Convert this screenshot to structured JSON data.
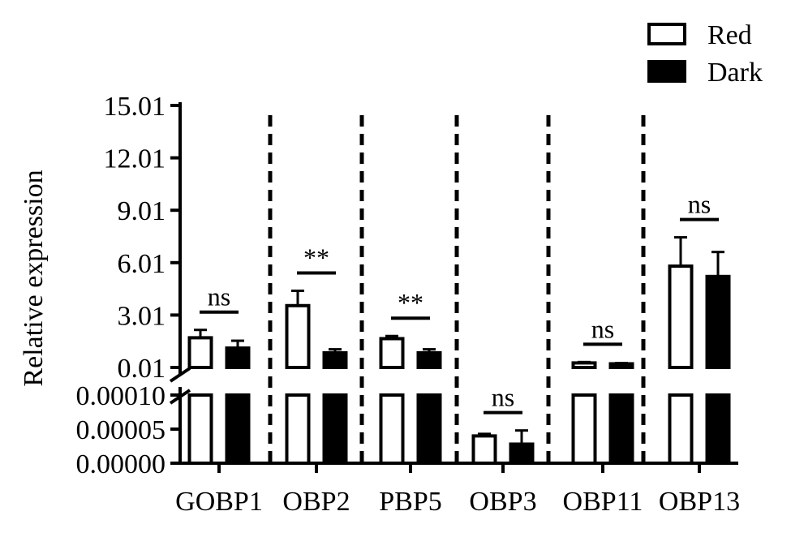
{
  "chart_data": {
    "type": "bar",
    "title": "",
    "xlabel": "",
    "ylabel": "Relative expression",
    "categories": [
      "GOBP1",
      "OBP2",
      "PBP5",
      "OBP3",
      "OBP11",
      "OBP13"
    ],
    "series": [
      {
        "name": "Red",
        "color": "#ffffff",
        "values": [
          1.71,
          3.55,
          1.66,
          4e-05,
          0.27,
          5.81
        ],
        "errors": [
          0.45,
          0.85,
          0.15,
          3e-06,
          0.05,
          1.65
        ]
      },
      {
        "name": "Dark",
        "color": "#000000",
        "values": [
          1.12,
          0.85,
          0.85,
          2.8e-05,
          0.22,
          5.22
        ],
        "errors": [
          0.42,
          0.2,
          0.2,
          2e-05,
          0.04,
          1.4
        ]
      }
    ],
    "yaxis_broken": true,
    "upper_ticks": [
      "0.01",
      "3.01",
      "6.01",
      "9.01",
      "12.01",
      "15.01"
    ],
    "upper_ylim": [
      0.01,
      15.01
    ],
    "lower_ticks": [
      "0.00000",
      "0.00005",
      "0.00010"
    ],
    "lower_ylim": [
      0,
      0.0001
    ],
    "significance": [
      "ns",
      "**",
      "**",
      "ns",
      "ns",
      "ns"
    ],
    "legend_position": "top-right",
    "grid": false
  }
}
